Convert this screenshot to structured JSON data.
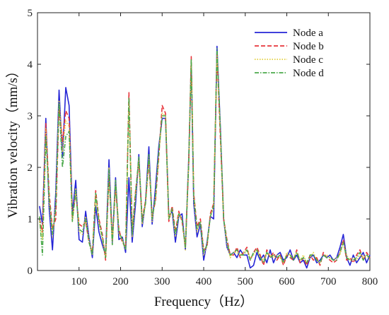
{
  "chart_data": {
    "type": "line",
    "title": "",
    "xlabel": "Frequency（Hz）",
    "ylabel": "Vibration velocity（mm/s）",
    "xlim": [
      0,
      800
    ],
    "ylim": [
      0,
      5
    ],
    "xticks": [
      100,
      200,
      300,
      400,
      500,
      600,
      700,
      800
    ],
    "yticks": [
      0,
      1,
      2,
      3,
      4,
      5
    ],
    "grid": false,
    "legend_position": "top-right",
    "series": [
      {
        "name": "Node a",
        "color": "#2525d6",
        "dash": "solid",
        "x": [
          5,
          12,
          20,
          28,
          36,
          44,
          52,
          60,
          68,
          76,
          84,
          92,
          100,
          108,
          116,
          124,
          132,
          140,
          148,
          156,
          164,
          172,
          180,
          188,
          196,
          204,
          212,
          220,
          228,
          236,
          244,
          252,
          260,
          268,
          276,
          284,
          292,
          300,
          308,
          316,
          324,
          332,
          340,
          348,
          356,
          364,
          370,
          376,
          384,
          392,
          400,
          408,
          416,
          424,
          432,
          440,
          448,
          456,
          464,
          472,
          480,
          488,
          496,
          504,
          512,
          520,
          528,
          536,
          544,
          552,
          560,
          568,
          576,
          584,
          592,
          600,
          608,
          616,
          624,
          632,
          640,
          648,
          656,
          664,
          672,
          680,
          688,
          696,
          704,
          712,
          720,
          728,
          736,
          744,
          752,
          760,
          768,
          776,
          784,
          792,
          800
        ],
        "values": [
          1.25,
          0.9,
          2.95,
          1.2,
          0.4,
          1.5,
          3.5,
          2.2,
          3.55,
          3.2,
          1.1,
          1.75,
          0.6,
          0.55,
          1.15,
          0.65,
          0.25,
          1.25,
          0.75,
          0.5,
          0.3,
          2.15,
          0.55,
          1.8,
          0.6,
          0.65,
          0.35,
          1.8,
          0.55,
          1.3,
          2.25,
          0.85,
          1.35,
          2.4,
          0.9,
          1.6,
          2.4,
          2.95,
          2.95,
          1.05,
          1.15,
          0.55,
          1.05,
          1.1,
          0.4,
          2.2,
          4.0,
          1.3,
          0.65,
          0.9,
          0.2,
          0.55,
          1.05,
          1.0,
          4.35,
          2.8,
          1.0,
          0.45,
          0.3,
          0.35,
          0.25,
          0.4,
          0.3,
          0.3,
          0.05,
          0.1,
          0.35,
          0.2,
          0.3,
          0.15,
          0.4,
          0.15,
          0.3,
          0.35,
          0.2,
          0.25,
          0.4,
          0.2,
          0.3,
          0.15,
          0.2,
          0.05,
          0.25,
          0.3,
          0.15,
          0.2,
          0.3,
          0.25,
          0.3,
          0.2,
          0.25,
          0.45,
          0.7,
          0.25,
          0.1,
          0.3,
          0.15,
          0.25,
          0.35,
          0.15,
          0.3
        ]
      },
      {
        "name": "Node b",
        "color": "#e8343a",
        "dash": "dashed",
        "x": [
          5,
          12,
          20,
          28,
          36,
          44,
          52,
          60,
          68,
          76,
          84,
          92,
          100,
          108,
          116,
          124,
          132,
          140,
          148,
          156,
          164,
          172,
          180,
          188,
          196,
          204,
          212,
          220,
          228,
          236,
          244,
          252,
          260,
          268,
          276,
          284,
          292,
          300,
          308,
          316,
          324,
          332,
          340,
          348,
          356,
          364,
          370,
          376,
          384,
          392,
          400,
          408,
          416,
          424,
          432,
          440,
          448,
          456,
          464,
          472,
          480,
          488,
          496,
          504,
          512,
          520,
          528,
          536,
          544,
          552,
          560,
          568,
          576,
          584,
          592,
          600,
          608,
          616,
          624,
          632,
          640,
          648,
          656,
          664,
          672,
          680,
          688,
          696,
          704,
          712,
          720,
          728,
          736,
          744,
          752,
          760,
          768,
          776,
          784,
          792,
          800
        ],
        "values": [
          1.0,
          0.75,
          2.85,
          1.5,
          0.8,
          1.0,
          3.2,
          2.5,
          3.1,
          2.95,
          1.0,
          1.5,
          0.9,
          0.85,
          0.95,
          0.55,
          0.35,
          1.55,
          1.0,
          0.7,
          0.2,
          1.85,
          0.6,
          1.6,
          0.8,
          0.55,
          0.45,
          3.45,
          0.75,
          1.55,
          2.1,
          1.0,
          1.35,
          2.1,
          1.05,
          1.35,
          2.2,
          3.2,
          3.05,
          0.95,
          1.25,
          0.75,
          1.15,
          0.95,
          0.45,
          2.1,
          4.15,
          1.5,
          0.85,
          1.0,
          0.4,
          0.45,
          1.1,
          1.3,
          4.2,
          2.6,
          1.0,
          0.6,
          0.3,
          0.3,
          0.45,
          0.25,
          0.35,
          0.45,
          0.2,
          0.35,
          0.45,
          0.3,
          0.1,
          0.4,
          0.25,
          0.35,
          0.2,
          0.3,
          0.1,
          0.3,
          0.25,
          0.2,
          0.4,
          0.15,
          0.25,
          0.1,
          0.3,
          0.2,
          0.25,
          0.1,
          0.35,
          0.25,
          0.2,
          0.15,
          0.2,
          0.35,
          0.6,
          0.2,
          0.25,
          0.15,
          0.3,
          0.4,
          0.2,
          0.35,
          0.25
        ]
      },
      {
        "name": "Node c",
        "color": "#e3cf3c",
        "dash": "dotted",
        "x": [
          5,
          12,
          20,
          28,
          36,
          44,
          52,
          60,
          68,
          76,
          84,
          92,
          100,
          108,
          116,
          124,
          132,
          140,
          148,
          156,
          164,
          172,
          180,
          188,
          196,
          204,
          212,
          220,
          228,
          236,
          244,
          252,
          260,
          268,
          276,
          284,
          292,
          300,
          308,
          316,
          324,
          332,
          340,
          348,
          356,
          364,
          370,
          376,
          384,
          392,
          400,
          408,
          416,
          424,
          432,
          440,
          448,
          456,
          464,
          472,
          480,
          488,
          496,
          504,
          512,
          520,
          528,
          536,
          544,
          552,
          560,
          568,
          576,
          584,
          592,
          600,
          608,
          616,
          624,
          632,
          640,
          648,
          656,
          664,
          672,
          680,
          688,
          696,
          704,
          712,
          720,
          728,
          736,
          744,
          752,
          760,
          768,
          776,
          784,
          792,
          800
        ],
        "values": [
          0.95,
          0.6,
          2.75,
          1.3,
          0.65,
          1.3,
          3.3,
          2.3,
          2.9,
          2.8,
          0.95,
          1.6,
          0.75,
          0.7,
          1.05,
          0.6,
          0.3,
          1.45,
          0.9,
          0.6,
          0.25,
          2.0,
          0.5,
          1.7,
          0.7,
          0.6,
          0.4,
          3.3,
          0.65,
          1.45,
          2.15,
          0.9,
          1.3,
          2.2,
          0.95,
          1.45,
          2.25,
          3.05,
          3.0,
          1.0,
          1.2,
          0.65,
          1.1,
          1.0,
          0.4,
          2.15,
          4.05,
          1.4,
          0.75,
          0.95,
          0.3,
          0.5,
          1.05,
          1.2,
          4.25,
          2.7,
          1.0,
          0.5,
          0.25,
          0.35,
          0.35,
          0.3,
          0.35,
          0.4,
          0.25,
          0.3,
          0.4,
          0.25,
          0.2,
          0.35,
          0.3,
          0.25,
          0.3,
          0.25,
          0.15,
          0.35,
          0.3,
          0.25,
          0.35,
          0.2,
          0.3,
          0.15,
          0.25,
          0.35,
          0.2,
          0.15,
          0.3,
          0.3,
          0.25,
          0.2,
          0.25,
          0.3,
          0.55,
          0.3,
          0.2,
          0.25,
          0.2,
          0.3,
          0.25,
          0.3,
          0.2
        ]
      },
      {
        "name": "Node d",
        "color": "#4caa4c",
        "dash": "dashdot",
        "x": [
          5,
          12,
          20,
          28,
          36,
          44,
          52,
          60,
          68,
          76,
          84,
          92,
          100,
          108,
          116,
          124,
          132,
          140,
          148,
          156,
          164,
          172,
          180,
          188,
          196,
          204,
          212,
          220,
          228,
          236,
          244,
          252,
          260,
          268,
          276,
          284,
          292,
          300,
          308,
          316,
          324,
          332,
          340,
          348,
          356,
          364,
          370,
          376,
          384,
          392,
          400,
          408,
          416,
          424,
          432,
          440,
          448,
          456,
          464,
          472,
          480,
          488,
          496,
          504,
          512,
          520,
          528,
          536,
          544,
          552,
          560,
          568,
          576,
          584,
          592,
          600,
          608,
          616,
          624,
          632,
          640,
          648,
          656,
          664,
          672,
          680,
          688,
          696,
          704,
          712,
          720,
          728,
          736,
          744,
          752,
          760,
          768,
          776,
          784,
          792,
          800
        ],
        "values": [
          1.05,
          0.3,
          2.6,
          1.4,
          0.7,
          1.2,
          3.25,
          2.0,
          2.6,
          2.7,
          0.95,
          1.55,
          0.8,
          0.75,
          1.0,
          0.55,
          0.3,
          1.5,
          0.95,
          0.65,
          0.25,
          1.95,
          0.5,
          1.75,
          0.75,
          0.6,
          0.4,
          3.35,
          0.7,
          1.5,
          2.2,
          0.95,
          1.3,
          2.25,
          1.0,
          1.4,
          2.3,
          3.0,
          3.0,
          1.0,
          1.2,
          0.7,
          1.1,
          1.0,
          0.45,
          2.1,
          4.1,
          1.45,
          0.8,
          0.95,
          0.35,
          0.5,
          1.05,
          1.25,
          4.3,
          2.75,
          1.0,
          0.55,
          0.3,
          0.35,
          0.4,
          0.3,
          0.3,
          0.4,
          0.2,
          0.35,
          0.4,
          0.25,
          0.15,
          0.35,
          0.25,
          0.3,
          0.25,
          0.3,
          0.15,
          0.3,
          0.3,
          0.2,
          0.35,
          0.2,
          0.25,
          0.15,
          0.3,
          0.3,
          0.2,
          0.15,
          0.3,
          0.25,
          0.25,
          0.2,
          0.2,
          0.35,
          0.55,
          0.25,
          0.2,
          0.2,
          0.25,
          0.35,
          0.2,
          0.3,
          0.25
        ]
      }
    ]
  }
}
